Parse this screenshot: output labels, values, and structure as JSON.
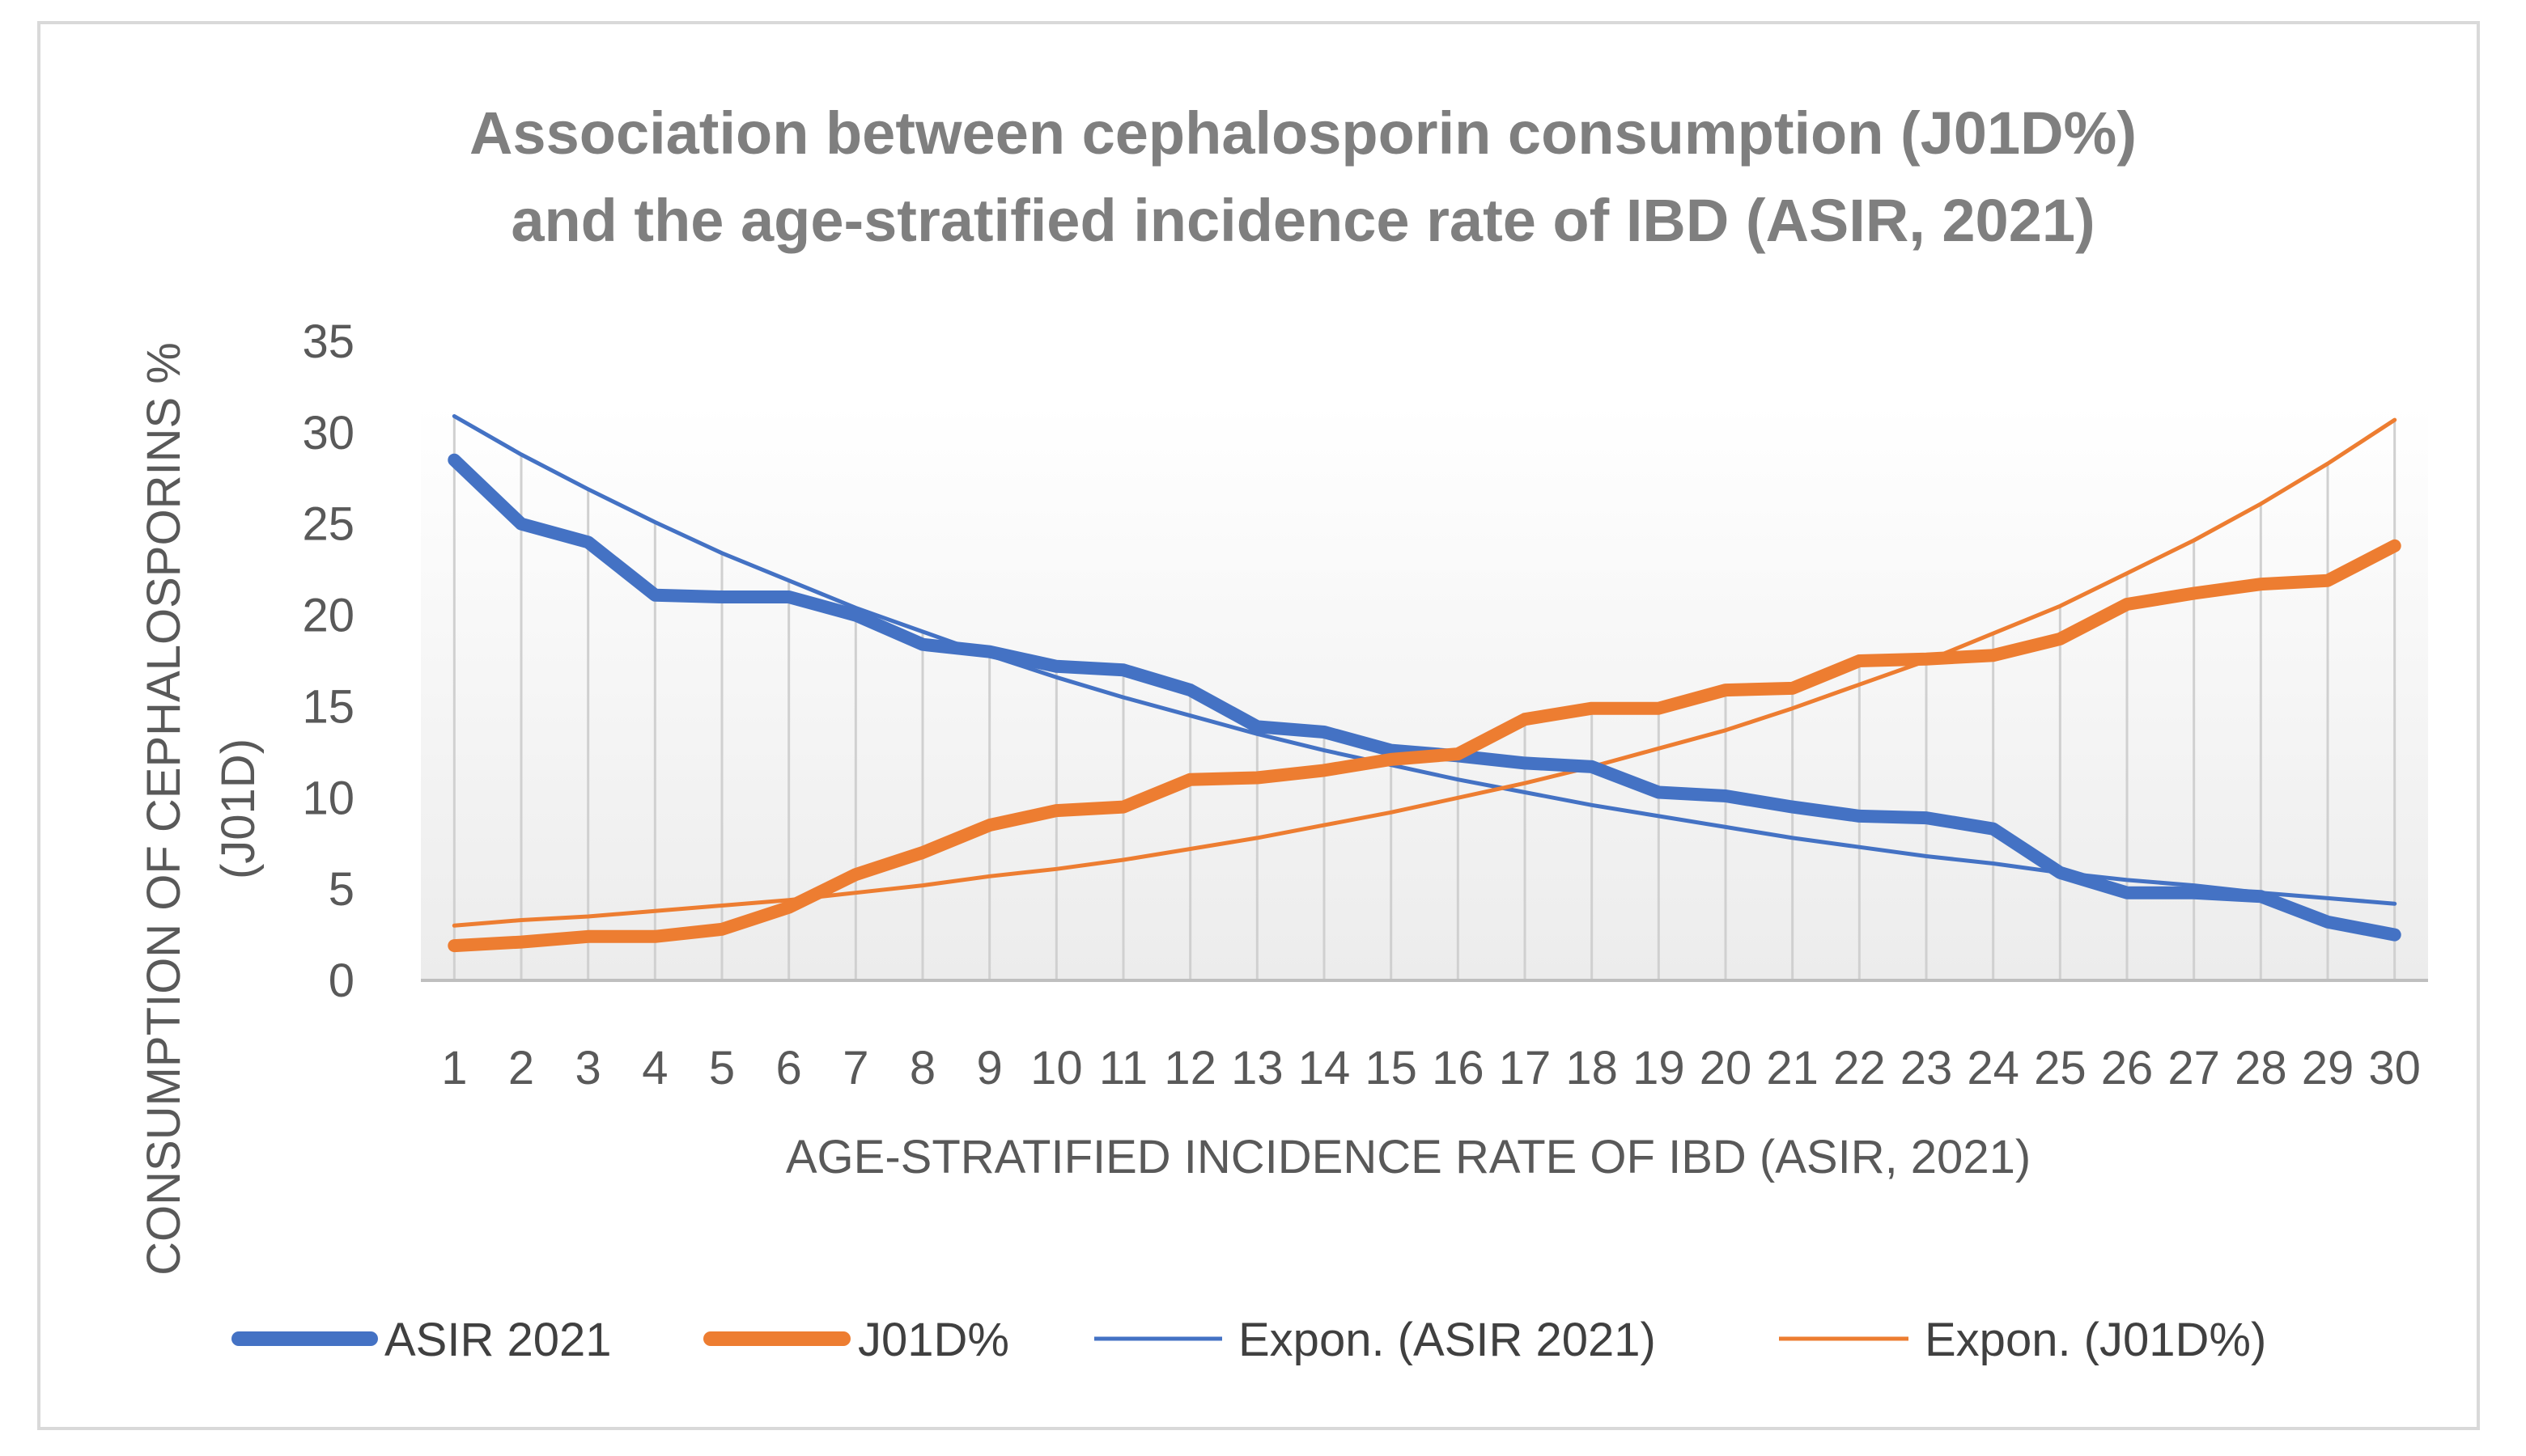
{
  "chart_data": {
    "type": "line",
    "title": "Association between cephalosporin consumption (J01D%) and the age-stratified incidence rate of IBD (ASIR, 2021)",
    "title_lines": [
      "Association between cephalosporin consumption (J01D%)",
      "and the age-stratified incidence rate of IBD (ASIR, 2021)"
    ],
    "xlabel": "AGE-STRATIFIED INCIDENCE RATE OF IBD (ASIR, 2021)",
    "ylabel": "CONSUMPTION OF CEPHALOSPORINS %",
    "ylabel_lines": [
      "CONSUMPTION OF CEPHALOSPORINS %",
      "(J01D)"
    ],
    "ylim": [
      0,
      35
    ],
    "yticks": [
      "0",
      "5",
      "10",
      "15",
      "20",
      "25",
      "30",
      "35"
    ],
    "categories": [
      "1",
      "2",
      "3",
      "4",
      "5",
      "6",
      "7",
      "8",
      "9",
      "10",
      "11",
      "12",
      "13",
      "14",
      "15",
      "16",
      "17",
      "18",
      "19",
      "20",
      "21",
      "22",
      "23",
      "24",
      "25",
      "26",
      "27",
      "28",
      "29",
      "30"
    ],
    "grid": "vertical drop lines",
    "legend_position": "bottom",
    "series": [
      {
        "name": "ASIR 2021",
        "color": "#4472c4",
        "style": "thick",
        "values": [
          28.5,
          25.0,
          24.0,
          21.1,
          21.0,
          21.0,
          20.0,
          18.4,
          18.0,
          17.2,
          17.0,
          15.9,
          13.9,
          13.6,
          12.6,
          12.3,
          11.9,
          11.7,
          10.3,
          10.1,
          9.5,
          9.0,
          8.9,
          8.3,
          5.9,
          4.8,
          4.8,
          4.6,
          3.2,
          2.5
        ]
      },
      {
        "name": "J01D%",
        "color": "#ed7d31",
        "style": "thick",
        "values": [
          1.9,
          2.1,
          2.4,
          2.4,
          2.8,
          4.0,
          5.8,
          7.0,
          8.5,
          9.3,
          9.5,
          11.0,
          11.1,
          11.5,
          12.1,
          12.4,
          14.3,
          14.9,
          14.9,
          15.9,
          16.0,
          17.5,
          17.6,
          17.8,
          18.7,
          20.6,
          21.2,
          21.7,
          21.9,
          23.8
        ]
      },
      {
        "name": "Expon. (ASIR 2021)",
        "color": "#4472c4",
        "style": "thin",
        "values": [
          30.9,
          28.8,
          26.9,
          25.1,
          23.4,
          21.9,
          20.4,
          19.1,
          17.8,
          16.6,
          15.5,
          14.5,
          13.5,
          12.6,
          11.8,
          11.0,
          10.3,
          9.6,
          9.0,
          8.4,
          7.8,
          7.3,
          6.8,
          6.4,
          5.9,
          5.5,
          5.2,
          4.8,
          4.5,
          4.2
        ]
      },
      {
        "name": "Expon. (J01D%)",
        "color": "#ed7d31",
        "style": "thin",
        "values": [
          3.0,
          3.3,
          3.5,
          3.8,
          4.1,
          4.4,
          4.8,
          5.2,
          5.7,
          6.1,
          6.6,
          7.2,
          7.8,
          8.5,
          9.2,
          10.0,
          10.8,
          11.7,
          12.7,
          13.7,
          14.9,
          16.2,
          17.5,
          19.0,
          20.5,
          22.3,
          24.1,
          26.1,
          28.3,
          30.7
        ]
      }
    ]
  }
}
